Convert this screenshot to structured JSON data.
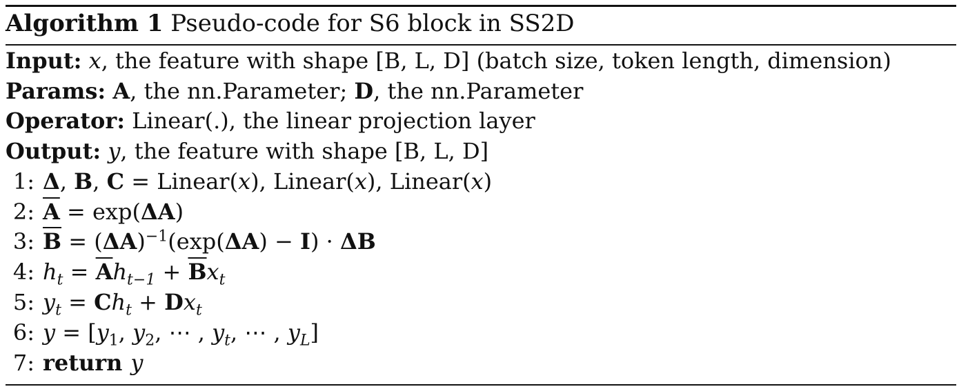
{
  "algorithm": {
    "label": "Algorithm 1",
    "caption": "Pseudo-code for S6 block in SS2D"
  },
  "io": {
    "input_label": "Input:",
    "input_var": "x",
    "input_desc": ", the feature with shape [B, L, D] (batch size, token length, dimension)",
    "params_label": "Params:",
    "params_A": "A",
    "params_A_desc": ", the nn.Parameter; ",
    "params_D": "D",
    "params_D_desc": ", the nn.Parameter",
    "operator_label": "Operator:",
    "operator_desc": "Linear(.), the linear projection layer",
    "output_label": "Output:",
    "output_var": "y",
    "output_desc": ", the feature with shape [B, L, D]"
  },
  "steps": [
    {
      "num": "1:"
    },
    {
      "num": "2:"
    },
    {
      "num": "3:"
    },
    {
      "num": "4:"
    },
    {
      "num": "5:"
    },
    {
      "num": "6:"
    },
    {
      "num": "7:",
      "keyword": "return",
      "var": "y"
    }
  ],
  "math": {
    "delta": "Δ",
    "B": "B",
    "C": "C",
    "A": "A",
    "D": "D",
    "I": "I",
    "x": "x",
    "h": "h",
    "y": "y",
    "t": "t",
    "L": "L",
    "linear": "Linear",
    "exp": "exp",
    "inv": "−1",
    "tminus1": "t−1",
    "cdots": "⋯"
  }
}
